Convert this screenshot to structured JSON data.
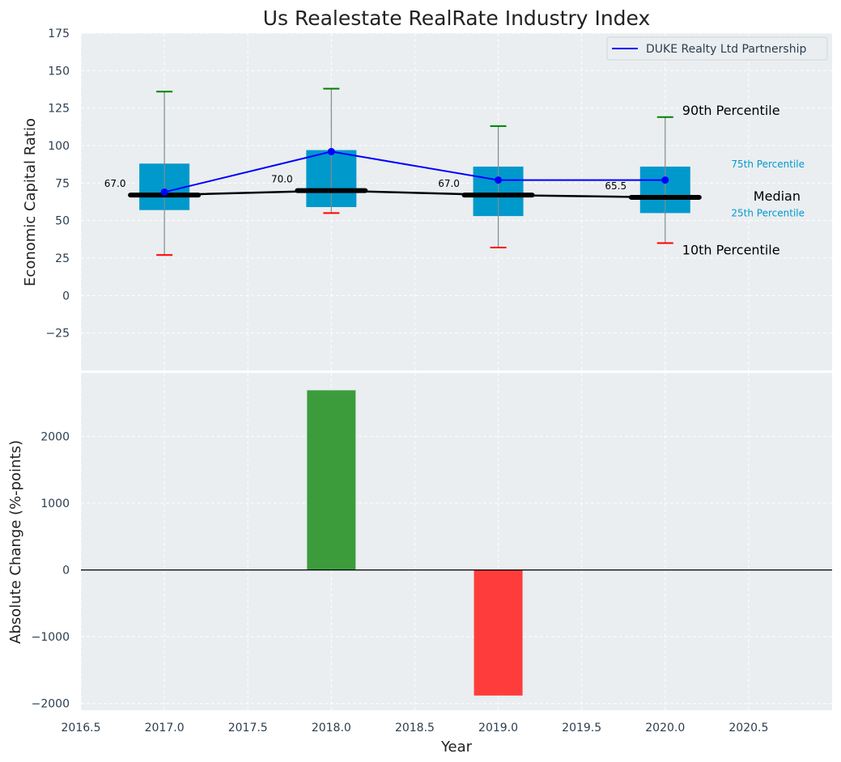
{
  "chart_data": [
    {
      "type": "box",
      "title": "Us Realestate RealRate Industry Index",
      "ylabel": "Economic Capital Ratio",
      "xlim": [
        2016.5,
        2021.0
      ],
      "ylim": [
        -50,
        175
      ],
      "yticks": [
        -25,
        0,
        25,
        50,
        75,
        100,
        125,
        150,
        175
      ],
      "x": [
        2017,
        2018,
        2019,
        2020
      ],
      "p10": [
        27,
        55,
        32,
        35
      ],
      "p25": [
        57,
        59,
        53,
        55
      ],
      "median": [
        67.0,
        70.0,
        67.0,
        65.5
      ],
      "p75": [
        88,
        97,
        86,
        86
      ],
      "p90": [
        136,
        138,
        113,
        119
      ],
      "median_labels": [
        "67.0",
        "70.0",
        "67.0",
        "65.5"
      ],
      "series": [
        {
          "name": "DUKE Realty Ltd Partnership",
          "values": [
            69,
            96,
            77,
            77
          ],
          "color": "#0000ff"
        }
      ],
      "annotations": {
        "p90": "90th Percentile",
        "p75": "75th Percentile",
        "median": "Median",
        "p25": "25th Percentile",
        "p10": "10th Percentile"
      },
      "colors": {
        "box": "#0099cc",
        "median_line": "#000000",
        "whisker_top": "#008000",
        "whisker_bottom": "#ff0000",
        "background": "#eaeef0"
      },
      "legend": "top-right",
      "grid": true
    },
    {
      "type": "bar",
      "xlabel": "Year",
      "ylabel": "Absolute Change (%-points)",
      "xlim": [
        2016.5,
        2021.0
      ],
      "ylim": [
        -2100,
        2950
      ],
      "yticks": [
        -2000,
        -1000,
        0,
        1000,
        2000
      ],
      "xticks": [
        "2016.5",
        "2017.0",
        "2017.5",
        "2018.0",
        "2018.5",
        "2019.0",
        "2019.5",
        "2020.0",
        "2020.5"
      ],
      "x": [
        2018,
        2019
      ],
      "values": [
        2690,
        -1880
      ],
      "colors": {
        "positive": "#3c9c3c",
        "negative": "#ff3c3c"
      },
      "grid": true
    }
  ]
}
